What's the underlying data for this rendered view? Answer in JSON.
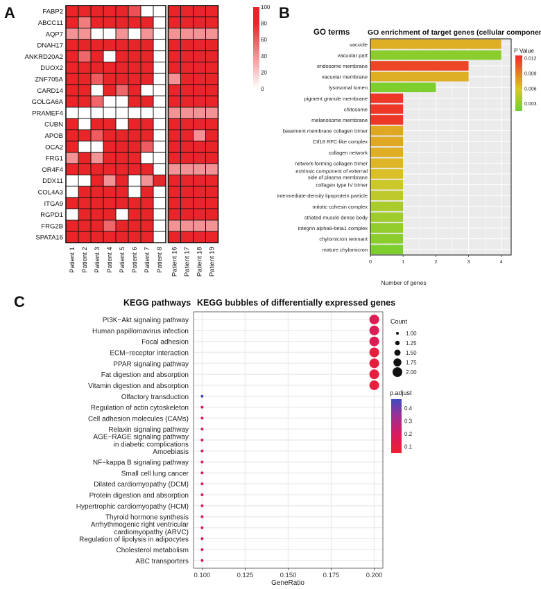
{
  "panel_labels": {
    "a": "A",
    "b": "B",
    "c": "C"
  },
  "colors": {
    "heat_high": "#E8262A",
    "heat_low": "#FFFFFF",
    "panel_bg": "#EBEBEB",
    "grid": "#FFFFFF"
  },
  "chart_data": [
    {
      "type": "heatmap",
      "panel": "A",
      "rows": [
        "FABP2",
        "ABCC11",
        "AQP7",
        "DNAH17",
        "ANKRD20A2",
        "DUOX2",
        "ZNF705A",
        "CARD14",
        "GOLGA6A",
        "PRAMEF4",
        "CUBN",
        "APOB",
        "OCA2",
        "FRG1",
        "OR4F4",
        "DDX11",
        "COL4A3",
        "ITGA9",
        "RGPD1",
        "FRG2B",
        "SPATA16"
      ],
      "columns": [
        "Patient 1",
        "Patient 2",
        "Patient 3",
        "Patient 4",
        "Patient 5",
        "Patient 6",
        "Patient 7",
        "Patient 8",
        "Patient 16",
        "Patient 17",
        "Patient 18",
        "Patient 19"
      ],
      "group_split_after_column": 8,
      "colorbar": {
        "ticks": [
          100,
          80,
          60,
          40,
          20,
          0
        ],
        "range": [
          0,
          100
        ]
      },
      "values": [
        [
          90,
          90,
          90,
          90,
          90,
          65,
          0,
          0,
          90,
          90,
          90,
          90
        ],
        [
          90,
          45,
          90,
          90,
          90,
          90,
          90,
          0,
          90,
          90,
          90,
          90
        ],
        [
          35,
          35,
          0,
          0,
          35,
          0,
          35,
          0,
          35,
          35,
          35,
          35
        ],
        [
          90,
          90,
          90,
          90,
          90,
          90,
          90,
          0,
          90,
          90,
          90,
          90
        ],
        [
          90,
          55,
          90,
          0,
          90,
          90,
          90,
          0,
          90,
          90,
          90,
          90
        ],
        [
          90,
          90,
          90,
          90,
          90,
          90,
          90,
          0,
          90,
          90,
          90,
          90
        ],
        [
          90,
          90,
          60,
          90,
          90,
          90,
          90,
          0,
          35,
          90,
          90,
          90
        ],
        [
          90,
          90,
          0,
          90,
          55,
          90,
          0,
          0,
          90,
          90,
          90,
          90
        ],
        [
          90,
          90,
          55,
          0,
          0,
          90,
          90,
          0,
          90,
          90,
          90,
          90
        ],
        [
          0,
          0,
          0,
          0,
          0,
          0,
          0,
          0,
          35,
          35,
          35,
          35
        ],
        [
          90,
          0,
          90,
          90,
          0,
          90,
          90,
          0,
          90,
          90,
          90,
          90
        ],
        [
          90,
          90,
          60,
          90,
          90,
          90,
          90,
          0,
          90,
          90,
          35,
          90
        ],
        [
          90,
          0,
          0,
          90,
          90,
          90,
          60,
          0,
          90,
          90,
          90,
          90
        ],
        [
          35,
          90,
          35,
          90,
          90,
          90,
          0,
          0,
          90,
          90,
          90,
          90
        ],
        [
          90,
          90,
          90,
          90,
          90,
          90,
          90,
          0,
          35,
          35,
          35,
          35
        ],
        [
          0,
          0,
          90,
          35,
          90,
          0,
          35,
          90,
          90,
          90,
          90,
          90
        ],
        [
          0,
          90,
          90,
          90,
          90,
          0,
          90,
          0,
          90,
          90,
          90,
          90
        ],
        [
          90,
          90,
          90,
          90,
          90,
          90,
          90,
          0,
          90,
          90,
          90,
          90
        ],
        [
          0,
          90,
          90,
          90,
          0,
          90,
          90,
          0,
          90,
          90,
          90,
          90
        ],
        [
          90,
          90,
          90,
          55,
          90,
          90,
          90,
          0,
          35,
          35,
          35,
          35
        ],
        [
          90,
          90,
          90,
          90,
          90,
          90,
          90,
          0,
          90,
          90,
          90,
          90
        ]
      ]
    },
    {
      "type": "bar",
      "panel": "B",
      "orientation": "horizontal",
      "side_title": "GO terms",
      "title": "GO enrichment of target genes (cellular component)",
      "categories": [
        "vacuole",
        "vacuolar part",
        "endosome membrane",
        "vacuolar membrane",
        "lysosomal lumen",
        "pigment granule membrane",
        "chitosome",
        "melanosome membrane",
        "basement membrane collagen trimer",
        "Ctf18 RFC-like complex",
        "collagen network",
        "network-forming collagen trimer",
        "extrinsic component of external side of plasma membrane",
        "collagen type IV trimer",
        "intermediate-density lipoprotein particle",
        "mitotic cohesin complex",
        "striated muscle dense body",
        "integrin alpha9-beta1 complex",
        "chylomicron remnant",
        "mature chylomicron"
      ],
      "category_lines": [
        [
          "vacuole"
        ],
        [
          "vacuolar part"
        ],
        [
          "endosome membrane"
        ],
        [
          "vacuolar membrane"
        ],
        [
          "lysosomal lumen"
        ],
        [
          "pigment granule membrane"
        ],
        [
          "chitosome"
        ],
        [
          "melanosome membrane"
        ],
        [
          "basement membrane collagen trimer"
        ],
        [
          "Ctf18 RFC-like complex"
        ],
        [
          "collagen network"
        ],
        [
          "network-forming collagen trimer"
        ],
        [
          "extrinsic component of external",
          "side of plasma membrane"
        ],
        [
          "collagen type IV trimer"
        ],
        [
          "intermediate-density lipoprotein particle"
        ],
        [
          "mitotic cohesin complex"
        ],
        [
          "striated muscle dense body"
        ],
        [
          "integrin alpha9-beta1 complex"
        ],
        [
          "chylomicron remnant"
        ],
        [
          "mature chylomicron"
        ]
      ],
      "values": [
        4,
        4,
        3,
        3,
        2,
        1,
        1,
        1,
        1,
        1,
        1,
        1,
        1,
        1,
        1,
        1,
        1,
        1,
        1,
        1
      ],
      "pvalues": [
        0.0075,
        0.0028,
        0.0115,
        0.0075,
        0.0022,
        0.012,
        0.012,
        0.012,
        0.0078,
        0.0078,
        0.0075,
        0.0072,
        0.0068,
        0.0058,
        0.0052,
        0.0042,
        0.0038,
        0.0032,
        0.0028,
        0.0022
      ],
      "xlabel": "Number of genes",
      "xlim": [
        0,
        4.3
      ],
      "xticks": [
        0,
        1,
        2,
        3,
        4
      ],
      "legend": {
        "title": "P Value",
        "ticks": [
          "0.012",
          "0.009",
          "0.006",
          "0.003"
        ],
        "tick_values": [
          0.012,
          0.009,
          0.006,
          0.003
        ],
        "range": [
          0.0015,
          0.0125
        ],
        "placement": "right"
      }
    },
    {
      "type": "scatter",
      "subtype": "bubble",
      "panel": "C",
      "side_title": "KEGG pathways",
      "title": "KEGG bubbles of differentially expressed genes",
      "categories": [
        "PI3K−Akt signaling pathway",
        "Human papillomavirus infection",
        "Focal adhesion",
        "ECM−receptor interaction",
        "PPAR signaling pathway",
        "Fat digestion and absorption",
        "Vitamin digestion and absorption",
        "Olfactory transduction",
        "Regulation of actin cytoskeleton",
        "Cell adhesion molecules (CAMs)",
        "Relaxin signaling pathway",
        "AGE−RAGE signaling pathway in diabetic complications",
        "Amoebiasis",
        "NF−kappa B signaling pathway",
        "Small cell lung cancer",
        "Dilated cardiomyopathy (DCM)",
        "Protein digestion and absorption",
        "Hypertrophic cardiomyopathy (HCM)",
        "Thyroid hormone synthesis",
        "Arrhythmogenic right ventricular cardiomyopathy (ARVC)",
        "Regulation of lipolysis in adipocytes",
        "Cholesterol metabolism",
        "ABC transporters"
      ],
      "category_lines": [
        [
          "PI3K−Akt signaling pathway"
        ],
        [
          "Human papillomavirus infection"
        ],
        [
          "Focal adhesion"
        ],
        [
          "ECM−receptor interaction"
        ],
        [
          "PPAR signaling pathway"
        ],
        [
          "Fat digestion and absorption"
        ],
        [
          "Vitamin digestion and absorption"
        ],
        [
          "Olfactory transduction"
        ],
        [
          "Regulation of actin cytoskeleton"
        ],
        [
          "Cell adhesion molecules (CAMs)"
        ],
        [
          "Relaxin signaling pathway"
        ],
        [
          "AGE−RAGE signaling pathway",
          "in diabetic complications"
        ],
        [
          "Amoebiasis"
        ],
        [
          "NF−kappa B signaling pathway"
        ],
        [
          "Small cell lung cancer"
        ],
        [
          "Dilated cardiomyopathy (DCM)"
        ],
        [
          "Protein digestion and absorption"
        ],
        [
          "Hypertrophic cardiomyopathy (HCM)"
        ],
        [
          "Thyroid hormone synthesis"
        ],
        [
          "Arrhythmogenic right ventricular",
          "cardiomyopathy (ARVC)"
        ],
        [
          "Regulation of lipolysis in adipocytes"
        ],
        [
          "Cholesterol metabolism"
        ],
        [
          "ABC transporters"
        ]
      ],
      "x": [
        0.2,
        0.2,
        0.2,
        0.2,
        0.2,
        0.2,
        0.2,
        0.1,
        0.1,
        0.1,
        0.1,
        0.1,
        0.1,
        0.1,
        0.1,
        0.1,
        0.1,
        0.1,
        0.1,
        0.1,
        0.1,
        0.1,
        0.1
      ],
      "count": [
        2,
        2,
        2,
        2,
        2,
        2,
        2,
        1,
        1,
        1,
        1,
        1,
        1,
        1,
        1,
        1,
        1,
        1,
        1,
        1,
        1,
        1,
        1
      ],
      "p_adjust": [
        0.16,
        0.17,
        0.16,
        0.1,
        0.1,
        0.1,
        0.09,
        0.46,
        0.18,
        0.17,
        0.17,
        0.17,
        0.17,
        0.17,
        0.17,
        0.17,
        0.17,
        0.17,
        0.17,
        0.17,
        0.17,
        0.17,
        0.17
      ],
      "xlabel": "GeneRatio",
      "xlim": [
        0.095,
        0.205
      ],
      "xticks": [
        0.1,
        0.125,
        0.15,
        0.175,
        0.2
      ],
      "xtick_labels": [
        "0.100",
        "0.125",
        "0.150",
        "0.175",
        "0.200"
      ],
      "size_legend": {
        "title": "Count",
        "labels": [
          "1.00",
          "1.25",
          "1.50",
          "1.75",
          "2.00"
        ],
        "values": [
          1,
          1.25,
          1.5,
          1.75,
          2
        ]
      },
      "color_legend": {
        "title": "p.adjust",
        "ticks": [
          "0.4",
          "0.3",
          "0.2",
          "0.1"
        ],
        "tick_values": [
          0.4,
          0.3,
          0.2,
          0.1
        ],
        "range": [
          0.05,
          0.47
        ]
      }
    }
  ]
}
